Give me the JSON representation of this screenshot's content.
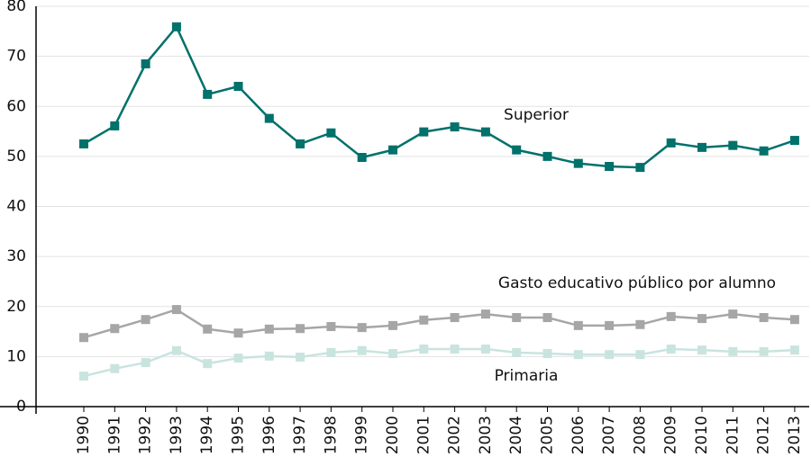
{
  "chart_data": {
    "type": "line",
    "categories": [
      "1990",
      "1991",
      "1992",
      "1993",
      "1994",
      "1995",
      "1996",
      "1997",
      "1998",
      "1999",
      "2000",
      "2001",
      "2002",
      "2003",
      "2004",
      "2005",
      "2006",
      "2007",
      "2008",
      "2009",
      "2010",
      "2011",
      "2012",
      "2013"
    ],
    "series": [
      {
        "name": "Superior",
        "color": "#00716b",
        "values": [
          52.5,
          56.1,
          68.5,
          75.9,
          62.4,
          64.0,
          57.6,
          52.5,
          54.7,
          49.8,
          51.3,
          54.9,
          55.9,
          54.9,
          51.3,
          50.0,
          48.6,
          48.0,
          47.8,
          52.7,
          51.8,
          52.2,
          51.1,
          53.2
        ]
      },
      {
        "name": "Gasto educativo público por alumno",
        "color": "#a6a6a6",
        "values": [
          13.8,
          15.6,
          17.4,
          19.4,
          15.5,
          14.7,
          15.5,
          15.6,
          16.0,
          15.8,
          16.2,
          17.3,
          17.8,
          18.5,
          17.8,
          17.8,
          16.2,
          16.2,
          16.4,
          18.0,
          17.6,
          18.5,
          17.8,
          17.4
        ]
      },
      {
        "name": "Primaria",
        "color": "#c9e4df",
        "values": [
          6.1,
          7.6,
          8.8,
          11.2,
          8.6,
          9.7,
          10.1,
          9.9,
          10.8,
          11.2,
          10.6,
          11.5,
          11.5,
          11.5,
          10.8,
          10.6,
          10.4,
          10.4,
          10.4,
          11.5,
          11.3,
          11.0,
          11.0,
          11.3
        ]
      }
    ],
    "ylim": [
      0,
      80
    ],
    "yticks": [
      0,
      10,
      20,
      30,
      40,
      50,
      60,
      70,
      80
    ],
    "grid": true
  }
}
